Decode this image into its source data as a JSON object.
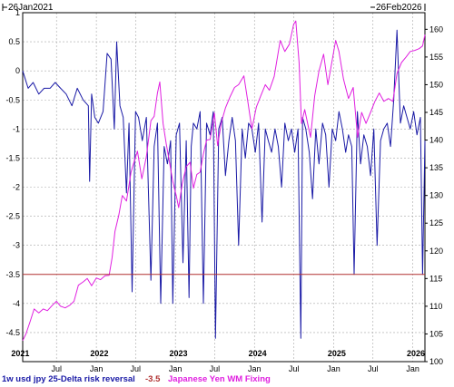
{
  "chart_data": {
    "type": "line",
    "header_left": "26Jan2021",
    "header_right": "26Feb2026",
    "x_range": [
      "2021-01-26",
      "2026-02-26"
    ],
    "x_tick_labels": [
      {
        "date": "2021-01-15",
        "label": "2021",
        "year": true
      },
      {
        "date": "2021-07-01",
        "label": "Jul",
        "year": false
      },
      {
        "date": "2022-01-01",
        "label": "Jan",
        "year": false
      },
      {
        "date": "2022-01-15",
        "label": "2022",
        "year": true
      },
      {
        "date": "2022-07-01",
        "label": "Jul",
        "year": false
      },
      {
        "date": "2023-01-01",
        "label": "Jan",
        "year": false
      },
      {
        "date": "2023-01-15",
        "label": "2023",
        "year": true
      },
      {
        "date": "2023-07-01",
        "label": "Jul",
        "year": false
      },
      {
        "date": "2024-01-01",
        "label": "Jan",
        "year": false
      },
      {
        "date": "2024-01-15",
        "label": "2024",
        "year": true
      },
      {
        "date": "2024-07-01",
        "label": "Jul",
        "year": false
      },
      {
        "date": "2025-01-01",
        "label": "Jan",
        "year": false
      },
      {
        "date": "2025-01-15",
        "label": "2025",
        "year": true
      },
      {
        "date": "2025-07-01",
        "label": "Jul",
        "year": false
      },
      {
        "date": "2026-01-01",
        "label": "Jan",
        "year": false
      },
      {
        "date": "2026-01-15",
        "label": "2026",
        "year": true
      }
    ],
    "left_axis": {
      "min": -5,
      "max": 1,
      "ticks": [
        1,
        0.5,
        0,
        -0.5,
        -1,
        -1.5,
        -2,
        -2.5,
        -3,
        -3.5,
        -4,
        -4.5
      ]
    },
    "right_axis": {
      "min": 100,
      "max": 163,
      "ticks": [
        160,
        155,
        150,
        145,
        140,
        135,
        130,
        125,
        120,
        115,
        110,
        105,
        100
      ]
    },
    "grid": true,
    "legend_position": "bottom",
    "reference_line": {
      "label": "-3.5",
      "value": -3.5,
      "color": "#b03030"
    },
    "series": [
      {
        "name": "1w usd jpy 25-Delta risk reversal",
        "axis": "left",
        "color": "#1a1aa6",
        "x": [
          "2021-01-26",
          "2021-02-20",
          "2021-03-15",
          "2021-04-10",
          "2021-05-05",
          "2021-06-01",
          "2021-06-25",
          "2021-07-20",
          "2021-08-15",
          "2021-09-10",
          "2021-10-05",
          "2021-11-01",
          "2021-11-25",
          "2021-12-01",
          "2021-12-10",
          "2021-12-25",
          "2022-01-10",
          "2022-02-01",
          "2022-02-20",
          "2022-03-10",
          "2022-03-25",
          "2022-04-05",
          "2022-04-20",
          "2022-05-05",
          "2022-05-20",
          "2022-06-01",
          "2022-06-15",
          "2022-07-01",
          "2022-07-15",
          "2022-08-01",
          "2022-08-20",
          "2022-09-10",
          "2022-09-25",
          "2022-10-10",
          "2022-10-25",
          "2022-11-10",
          "2022-11-25",
          "2022-12-10",
          "2022-12-20",
          "2023-01-05",
          "2023-01-20",
          "2023-02-05",
          "2023-02-20",
          "2023-03-05",
          "2023-03-15",
          "2023-03-25",
          "2023-04-10",
          "2023-04-25",
          "2023-05-10",
          "2023-05-25",
          "2023-06-10",
          "2023-06-25",
          "2023-07-05",
          "2023-07-20",
          "2023-08-05",
          "2023-08-20",
          "2023-09-05",
          "2023-09-20",
          "2023-10-05",
          "2023-10-20",
          "2023-11-05",
          "2023-11-20",
          "2023-12-05",
          "2023-12-20",
          "2024-01-05",
          "2024-01-20",
          "2024-02-05",
          "2024-02-20",
          "2024-03-05",
          "2024-03-20",
          "2024-04-05",
          "2024-04-20",
          "2024-05-05",
          "2024-05-20",
          "2024-06-05",
          "2024-06-20",
          "2024-07-05",
          "2024-07-20",
          "2024-08-02",
          "2024-08-10",
          "2024-08-25",
          "2024-09-10",
          "2024-09-25",
          "2024-10-10",
          "2024-10-25",
          "2024-11-10",
          "2024-11-25",
          "2024-12-10",
          "2024-12-25",
          "2025-01-10",
          "2025-01-25",
          "2025-02-10",
          "2025-02-25",
          "2025-03-10",
          "2025-03-25",
          "2025-04-05",
          "2025-04-20",
          "2025-05-05",
          "2025-05-20",
          "2025-06-05",
          "2025-06-20",
          "2025-07-05",
          "2025-07-20",
          "2025-08-05",
          "2025-08-20",
          "2025-09-05",
          "2025-09-20",
          "2025-10-05",
          "2025-10-20",
          "2025-11-05",
          "2025-11-20",
          "2025-12-05",
          "2025-12-20",
          "2026-01-05",
          "2026-01-20",
          "2026-02-05",
          "2026-02-15",
          "2026-02-26"
        ],
        "y": [
          0.0,
          -0.3,
          -0.2,
          -0.4,
          -0.3,
          -0.3,
          -0.2,
          -0.3,
          -0.4,
          -0.6,
          -0.3,
          -0.5,
          -0.6,
          -1.9,
          -0.4,
          -0.8,
          -0.9,
          -0.7,
          0.3,
          0.2,
          -1.0,
          0.5,
          -0.6,
          -0.8,
          -2.1,
          -0.9,
          -3.8,
          -0.7,
          -0.8,
          -1.2,
          -0.8,
          -3.6,
          -1.3,
          -0.9,
          -4.0,
          -1.3,
          -1.6,
          -1.2,
          -4.0,
          -1.1,
          -0.9,
          -3.3,
          -1.2,
          -3.9,
          -1.3,
          -0.9,
          -1.0,
          -0.7,
          -4.0,
          -0.9,
          -1.1,
          -0.7,
          -4.6,
          -1.0,
          -0.8,
          -1.8,
          -1.2,
          -0.8,
          -1.2,
          -3.0,
          -1.0,
          -1.5,
          -0.9,
          -1.0,
          -1.4,
          -0.9,
          -2.6,
          -1.0,
          -1.2,
          -1.4,
          -1.0,
          -1.3,
          -2.0,
          -0.9,
          -1.2,
          -1.0,
          -1.4,
          -1.0,
          -4.6,
          -0.8,
          -1.0,
          -1.4,
          -2.2,
          -1.0,
          -1.6,
          -0.9,
          -1.1,
          -2.0,
          -1.0,
          -1.2,
          -0.7,
          -1.0,
          -1.4,
          -1.1,
          -1.3,
          -3.5,
          -0.7,
          -1.6,
          -1.1,
          -1.3,
          -1.8,
          -1.0,
          -3.0,
          -1.2,
          -1.0,
          -0.9,
          -1.3,
          -0.5,
          0.7,
          -0.9,
          -0.6,
          -0.8,
          -1.0,
          -0.7,
          -1.1,
          -0.8,
          -3.5,
          -1.2
        ]
      },
      {
        "name": "Japanese Yen WM Fixing",
        "axis": "right",
        "color": "#e020e0",
        "x": [
          "2021-01-26",
          "2021-02-10",
          "2021-03-01",
          "2021-03-20",
          "2021-04-10",
          "2021-05-01",
          "2021-05-20",
          "2021-06-10",
          "2021-07-01",
          "2021-07-20",
          "2021-08-10",
          "2021-09-01",
          "2021-09-20",
          "2021-10-10",
          "2021-11-01",
          "2021-11-20",
          "2021-12-10",
          "2022-01-01",
          "2022-01-20",
          "2022-02-10",
          "2022-03-01",
          "2022-03-15",
          "2022-03-28",
          "2022-04-15",
          "2022-05-01",
          "2022-05-20",
          "2022-06-10",
          "2022-06-25",
          "2022-07-10",
          "2022-07-30",
          "2022-08-20",
          "2022-09-10",
          "2022-09-25",
          "2022-10-10",
          "2022-10-21",
          "2022-11-05",
          "2022-11-20",
          "2022-12-05",
          "2022-12-20",
          "2023-01-05",
          "2023-01-16",
          "2023-02-01",
          "2023-02-20",
          "2023-03-10",
          "2023-03-25",
          "2023-04-10",
          "2023-04-25",
          "2023-05-10",
          "2023-05-25",
          "2023-06-10",
          "2023-06-30",
          "2023-07-15",
          "2023-08-01",
          "2023-08-20",
          "2023-09-10",
          "2023-10-01",
          "2023-10-20",
          "2023-11-13",
          "2023-12-01",
          "2023-12-20",
          "2024-01-10",
          "2024-01-30",
          "2024-02-20",
          "2024-03-10",
          "2024-04-01",
          "2024-04-29",
          "2024-05-20",
          "2024-06-10",
          "2024-06-30",
          "2024-07-10",
          "2024-07-25",
          "2024-08-05",
          "2024-08-20",
          "2024-09-16",
          "2024-10-05",
          "2024-10-25",
          "2024-11-15",
          "2024-12-05",
          "2025-01-10",
          "2025-01-25",
          "2025-02-15",
          "2025-03-10",
          "2025-04-01",
          "2025-04-21",
          "2025-05-10",
          "2025-05-30",
          "2025-06-20",
          "2025-07-10",
          "2025-07-30",
          "2025-08-20",
          "2025-09-10",
          "2025-10-01",
          "2025-10-20",
          "2025-11-10",
          "2025-12-01",
          "2025-12-20",
          "2026-01-10",
          "2026-01-30",
          "2026-02-15",
          "2026-02-26"
        ],
        "y": [
          103.8,
          105.0,
          107.2,
          109.5,
          108.8,
          109.5,
          109.2,
          110.1,
          110.9,
          110.0,
          109.7,
          110.2,
          110.9,
          113.8,
          114.4,
          115.0,
          113.7,
          115.1,
          114.8,
          115.5,
          115.6,
          118.8,
          123.5,
          126.5,
          130.0,
          129.0,
          134.2,
          136.2,
          138.0,
          133.0,
          137.0,
          143.5,
          144.3,
          148.5,
          150.5,
          143.0,
          139.2,
          136.0,
          132.5,
          130.0,
          127.8,
          132.0,
          135.2,
          136.0,
          131.3,
          133.8,
          134.2,
          137.5,
          140.0,
          140.1,
          144.9,
          139.0,
          143.2,
          145.8,
          147.8,
          149.5,
          150.0,
          151.6,
          147.0,
          142.0,
          146.0,
          148.0,
          150.0,
          149.0,
          151.5,
          158.0,
          156.0,
          157.3,
          160.9,
          161.5,
          154.0,
          143.0,
          145.5,
          140.5,
          148.0,
          152.5,
          155.5,
          150.0,
          158.0,
          156.0,
          151.0,
          147.5,
          149.5,
          140.5,
          145.0,
          143.0,
          145.0,
          147.0,
          148.5,
          147.0,
          147.5,
          147.0,
          152.0,
          154.0,
          155.0,
          156.0,
          156.2,
          156.5,
          157.0,
          159.0
        ]
      }
    ]
  }
}
